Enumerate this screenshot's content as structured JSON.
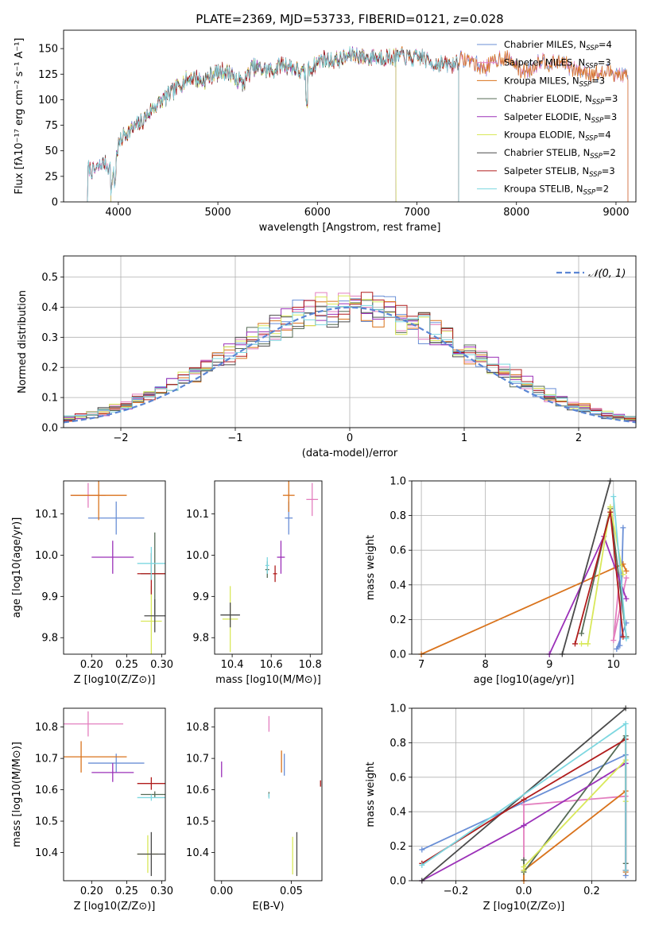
{
  "figure_title": "PLATE=2369, MJD=53733, FIBERID=0121, z=0.028",
  "colors": [
    "#6a8fd6",
    "#e37fbf",
    "#d9731c",
    "#556b55",
    "#9b30b8",
    "#d9e85a",
    "#4a4a4a",
    "#b01c1c",
    "#7dd7e0"
  ],
  "chart_data": [
    {
      "id": "spectrum",
      "type": "line",
      "title": "PLATE=2369, MJD=53733, FIBERID=0121, z=0.028",
      "xlabel": "wavelength [Angstrom, rest frame]",
      "ylabel": "Flux [fλ10⁻¹⁷ erg cm⁻² s⁻¹ A⁻¹]",
      "xlim": [
        3450,
        9200
      ],
      "ylim": [
        0,
        168
      ],
      "xticks": [
        4000,
        5000,
        6000,
        7000,
        8000,
        9000
      ],
      "yticks": [
        0,
        25,
        50,
        75,
        100,
        125,
        150
      ],
      "legend": "top-right",
      "continuum": {
        "x": [
          3680,
          3750,
          3850,
          3900,
          3950,
          4000,
          4050,
          4150,
          4250,
          4350,
          4450,
          4550,
          4650,
          4750,
          4850,
          4950,
          5050,
          5150,
          5250,
          5350,
          5450,
          5550,
          5650,
          5750,
          5850,
          5950,
          6050,
          6150,
          6250,
          6350,
          6450,
          6550,
          6650,
          6750,
          6850,
          6950,
          7050,
          7150,
          7250,
          7350,
          7450,
          7550,
          7650,
          7750,
          7850,
          7950,
          8050,
          8150,
          8250,
          8350,
          8450,
          8550,
          8650,
          8750,
          8850,
          8950,
          9050,
          9120
        ],
        "y": [
          35,
          30,
          38,
          35,
          30,
          55,
          65,
          72,
          80,
          92,
          100,
          108,
          118,
          122,
          118,
          125,
          128,
          125,
          115,
          132,
          130,
          128,
          135,
          132,
          125,
          132,
          140,
          138,
          140,
          145,
          142,
          140,
          142,
          141,
          143,
          140,
          142,
          136,
          135,
          134,
          140,
          138,
          130,
          135,
          142,
          138,
          128,
          130,
          140,
          135,
          138,
          130,
          128,
          126,
          125,
          128,
          124,
          122
        ]
      },
      "series": [
        {
          "name": "Chabrier MILES, N_SSP=4",
          "color_index": 0,
          "range": [
            3690,
            9120
          ]
        },
        {
          "name": "Salpeter MILES, N_SSP=3",
          "color_index": 1,
          "range": [
            3690,
            9120
          ]
        },
        {
          "name": "Kroupa MILES, N_SSP=3",
          "color_index": 2,
          "range": [
            3925,
            9120
          ]
        },
        {
          "name": "Chabrier ELODIE, N_SSP=3",
          "color_index": 3,
          "range": [
            3925,
            6790
          ]
        },
        {
          "name": "Salpeter ELODIE, N_SSP=3",
          "color_index": 4,
          "range": [
            3925,
            6790
          ]
        },
        {
          "name": "Kroupa ELODIE, N_SSP=4",
          "color_index": 5,
          "range": [
            3925,
            6790
          ]
        },
        {
          "name": "Chabrier STELIB, N_SSP=2",
          "color_index": 6,
          "range": [
            3690,
            7420
          ]
        },
        {
          "name": "Salpeter STELIB, N_SSP=3",
          "color_index": 7,
          "range": [
            3690,
            7420
          ]
        },
        {
          "name": "Kroupa STELIB, N_SSP=2",
          "color_index": 8,
          "range": [
            3690,
            7420
          ]
        }
      ]
    },
    {
      "id": "residuals",
      "type": "histogram",
      "xlabel": "(data-model)/error",
      "ylabel": "Normed distribution",
      "xlim": [
        -2.5,
        2.5
      ],
      "ylim": [
        0,
        0.57
      ],
      "xticks": [
        -2,
        -1,
        0,
        1,
        2
      ],
      "yticks": [
        0.0,
        0.1,
        0.2,
        0.3,
        0.4,
        0.5
      ],
      "grid": true,
      "legend": "top-right",
      "reference_curve": {
        "name": "𝒩(0, 1)",
        "mean": 0,
        "sigma": 1
      },
      "bin_width": 0.1
    },
    {
      "id": "z_vs_age",
      "type": "errorbar",
      "xlabel": "Z [log10(Z/Z⊙)]",
      "ylabel": "age  [log10(age/yr)]",
      "xlim": [
        0.16,
        0.305
      ],
      "ylim": [
        9.76,
        10.18
      ],
      "xticks": [
        0.2,
        0.25,
        0.3
      ],
      "yticks": [
        9.8,
        9.9,
        10.0,
        10.1
      ],
      "points": [
        {
          "c": 0,
          "x": 0.235,
          "y": 10.09,
          "xerr": 0.04,
          "yerr": 0.04
        },
        {
          "c": 1,
          "x": 0.195,
          "y": 10.145,
          "xerr": 0.025,
          "yerr": 0.03
        },
        {
          "c": 2,
          "x": 0.21,
          "y": 10.145,
          "xerr": 0.04,
          "yerr": 0.06
        },
        {
          "c": 3,
          "x": 0.29,
          "y": 9.955,
          "xerr": 0.02,
          "yerr": 0.1
        },
        {
          "c": 4,
          "x": 0.23,
          "y": 9.995,
          "xerr": 0.03,
          "yerr": 0.04
        },
        {
          "c": 5,
          "x": 0.285,
          "y": 9.84,
          "xerr": 0.015,
          "yerr": 0.085
        },
        {
          "c": 6,
          "x": 0.29,
          "y": 9.853,
          "xerr": 0.015,
          "yerr": 0.04
        },
        {
          "c": 7,
          "x": 0.285,
          "y": 9.955,
          "xerr": 0.02,
          "yerr": 0.05
        },
        {
          "c": 8,
          "x": 0.285,
          "y": 9.98,
          "xerr": 0.02,
          "yerr": 0.04
        }
      ]
    },
    {
      "id": "mass_vs_age",
      "type": "errorbar",
      "xlabel": "mass [log10(M/M⊙)]",
      "ylabel": "",
      "xlim": [
        10.31,
        10.86
      ],
      "ylim": [
        9.76,
        10.18
      ],
      "xticks": [
        10.4,
        10.6,
        10.8
      ],
      "yticks": [
        9.8,
        9.9,
        10.0,
        10.1
      ],
      "points": [
        {
          "c": 0,
          "x": 10.69,
          "y": 10.09,
          "xerr": 0.02,
          "yerr": 0.04
        },
        {
          "c": 1,
          "x": 10.81,
          "y": 10.135,
          "xerr": 0.03,
          "yerr": 0.04
        },
        {
          "c": 2,
          "x": 10.69,
          "y": 10.145,
          "xerr": 0.03,
          "yerr": 0.04
        },
        {
          "c": 3,
          "x": 10.58,
          "y": 9.965,
          "xerr": 0.01,
          "yerr": 0.02
        },
        {
          "c": 4,
          "x": 10.65,
          "y": 9.995,
          "xerr": 0.02,
          "yerr": 0.04
        },
        {
          "c": 5,
          "x": 10.39,
          "y": 9.845,
          "xerr": 0.04,
          "yerr": 0.08
        },
        {
          "c": 6,
          "x": 10.39,
          "y": 9.855,
          "xerr": 0.05,
          "yerr": 0.03
        },
        {
          "c": 7,
          "x": 10.62,
          "y": 9.955,
          "xerr": 0.01,
          "yerr": 0.02
        },
        {
          "c": 8,
          "x": 10.58,
          "y": 9.975,
          "xerr": 0.01,
          "yerr": 0.02
        }
      ]
    },
    {
      "id": "age_vs_weight",
      "type": "line",
      "xlabel": "age  [log10(age/yr)]",
      "ylabel": "mass weight",
      "xlim": [
        6.85,
        10.35
      ],
      "ylim": [
        0,
        1
      ],
      "xticks": [
        7,
        8,
        9,
        10
      ],
      "yticks": [
        0.0,
        0.2,
        0.4,
        0.6,
        0.8,
        1.0
      ],
      "grid": true,
      "series": [
        {
          "c": 0,
          "x": [
            10.15,
            10.1,
            10.05,
            10.2
          ],
          "y": [
            0.73,
            0.05,
            0.03,
            0.18
          ]
        },
        {
          "c": 1,
          "x": [
            10.2,
            10.0,
            10.1
          ],
          "y": [
            0.44,
            0.08,
            0.46
          ]
        },
        {
          "c": 2,
          "x": [
            7.0,
            10.15,
            10.2
          ],
          "y": [
            0.0,
            0.52,
            0.48
          ]
        },
        {
          "c": 3,
          "x": [
            9.5,
            9.95,
            10.2
          ],
          "y": [
            0.12,
            0.84,
            0.1
          ]
        },
        {
          "c": 4,
          "x": [
            9.0,
            9.85,
            10.2
          ],
          "y": [
            0.0,
            0.68,
            0.32
          ]
        },
        {
          "c": 5,
          "x": [
            9.5,
            9.6,
            9.95,
            10.15
          ],
          "y": [
            0.06,
            0.06,
            0.85,
            0.46
          ]
        },
        {
          "c": 6,
          "x": [
            9.2,
            9.95
          ],
          "y": [
            0.0,
            1.0
          ]
        },
        {
          "c": 7,
          "x": [
            9.4,
            9.95,
            10.15
          ],
          "y": [
            0.06,
            0.82,
            0.1
          ]
        },
        {
          "c": 8,
          "x": [
            10.0,
            10.2
          ],
          "y": [
            0.91,
            0.09
          ]
        }
      ]
    },
    {
      "id": "z_vs_mass",
      "type": "errorbar",
      "xlabel": "Z [log10(Z/Z⊙)]",
      "ylabel": "mass [log10(M/M⊙)]",
      "xlim": [
        0.16,
        0.305
      ],
      "ylim": [
        10.31,
        10.86
      ],
      "xticks": [
        0.2,
        0.25,
        0.3
      ],
      "yticks": [
        10.4,
        10.5,
        10.6,
        10.7,
        10.8
      ],
      "points": [
        {
          "c": 0,
          "x": 0.235,
          "y": 10.685,
          "xerr": 0.04,
          "yerr": 0.03
        },
        {
          "c": 1,
          "x": 0.195,
          "y": 10.81,
          "xerr": 0.05,
          "yerr": 0.04
        },
        {
          "c": 2,
          "x": 0.185,
          "y": 10.705,
          "xerr": 0.065,
          "yerr": 0.05
        },
        {
          "c": 3,
          "x": 0.29,
          "y": 10.585,
          "xerr": 0.02,
          "yerr": 0.01
        },
        {
          "c": 4,
          "x": 0.23,
          "y": 10.655,
          "xerr": 0.03,
          "yerr": 0.03
        },
        {
          "c": 5,
          "x": 0.28,
          "y": 10.395,
          "xerr": 0.015,
          "yerr": 0.06
        },
        {
          "c": 6,
          "x": 0.285,
          "y": 10.395,
          "xerr": 0.02,
          "yerr": 0.07
        },
        {
          "c": 7,
          "x": 0.285,
          "y": 10.62,
          "xerr": 0.02,
          "yerr": 0.02
        },
        {
          "c": 8,
          "x": 0.285,
          "y": 10.575,
          "xerr": 0.02,
          "yerr": 0.01
        }
      ]
    },
    {
      "id": "ebv_vs_mass",
      "type": "errorbar",
      "xlabel": "E(B-V)",
      "ylabel": "",
      "xlim": [
        -0.005,
        0.072
      ],
      "ylim": [
        10.31,
        10.86
      ],
      "xticks": [
        0.0,
        0.05
      ],
      "yticks": [
        10.4,
        10.5,
        10.6,
        10.7,
        10.8
      ],
      "points": [
        {
          "c": 0,
          "x": 0.045,
          "y": 10.68,
          "xerr": 0,
          "yerr": 0.035
        },
        {
          "c": 1,
          "x": 0.034,
          "y": 10.81,
          "xerr": 0,
          "yerr": 0.025
        },
        {
          "c": 2,
          "x": 0.043,
          "y": 10.69,
          "xerr": 0,
          "yerr": 0.035
        },
        {
          "c": 3,
          "x": 0.034,
          "y": 10.585,
          "xerr": 0,
          "yerr": 0.008
        },
        {
          "c": 4,
          "x": 0.0,
          "y": 10.665,
          "xerr": 0,
          "yerr": 0.025
        },
        {
          "c": 5,
          "x": 0.051,
          "y": 10.39,
          "xerr": 0,
          "yerr": 0.06
        },
        {
          "c": 6,
          "x": 0.054,
          "y": 10.395,
          "xerr": 0,
          "yerr": 0.07
        },
        {
          "c": 7,
          "x": 0.071,
          "y": 10.62,
          "xerr": 0,
          "yerr": 0.01
        },
        {
          "c": 8,
          "x": 0.034,
          "y": 10.58,
          "xerr": 0,
          "yerr": 0.008
        }
      ]
    },
    {
      "id": "z_vs_weight",
      "type": "line",
      "xlabel": "Z [log10(Z/Z⊙)]",
      "ylabel": "mass weight",
      "xlim": [
        -0.33,
        0.33
      ],
      "ylim": [
        0,
        1
      ],
      "xticks": [
        -0.2,
        0.0,
        0.2
      ],
      "yticks": [
        0.0,
        0.2,
        0.4,
        0.6,
        0.8,
        1.0
      ],
      "grid": true,
      "series": [
        {
          "c": 0,
          "x": [
            -0.3,
            0.3,
            0.3
          ],
          "y": [
            0.18,
            0.73,
            0.03
          ]
        },
        {
          "c": 1,
          "x": [
            0.0,
            0.0,
            0.3
          ],
          "y": [
            0.06,
            0.44,
            0.49
          ]
        },
        {
          "c": 2,
          "x": [
            0.0,
            0.0,
            0.3,
            0.3
          ],
          "y": [
            0.0,
            0.06,
            0.52,
            0.05
          ]
        },
        {
          "c": 3,
          "x": [
            0.0,
            0.0,
            0.3,
            0.3
          ],
          "y": [
            0.12,
            0.05,
            0.84,
            0.1
          ]
        },
        {
          "c": 4,
          "x": [
            -0.3,
            0.0,
            0.3,
            0.3
          ],
          "y": [
            0.0,
            0.32,
            0.68,
            0.06
          ]
        },
        {
          "c": 5,
          "x": [
            0.0,
            0.0,
            0.3,
            0.3
          ],
          "y": [
            0.06,
            0.08,
            0.7,
            0.46
          ]
        },
        {
          "c": 6,
          "x": [
            -0.3,
            0.3
          ],
          "y": [
            0.0,
            1.0
          ]
        },
        {
          "c": 7,
          "x": [
            -0.3,
            0.0,
            0.3,
            0.3
          ],
          "y": [
            0.1,
            0.47,
            0.82,
            0.06
          ]
        },
        {
          "c": 8,
          "x": [
            -0.3,
            0.3,
            0.3
          ],
          "y": [
            0.09,
            0.91,
            0.06
          ]
        }
      ]
    }
  ]
}
